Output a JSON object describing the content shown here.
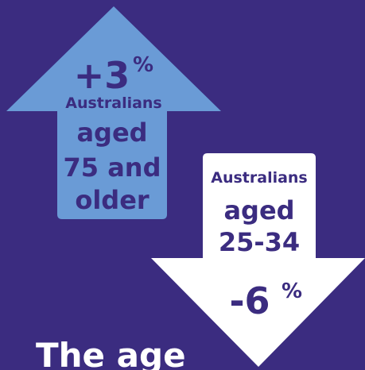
{
  "up_arrow": {
    "change": "+3",
    "unit": "%",
    "lines": [
      "Australians",
      "aged",
      "75 and",
      "older"
    ]
  },
  "down_arrow": {
    "lines": [
      "Australians",
      "aged",
      "25-34"
    ],
    "change": "-6",
    "unit": "%"
  },
  "title": "The age"
}
